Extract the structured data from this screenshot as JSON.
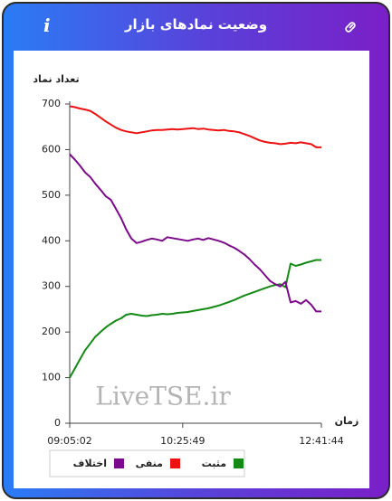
{
  "header": {
    "title": "وضعیت نمادهای بازار"
  },
  "chart_data": {
    "type": "line",
    "ylabel": "تعداد نماد",
    "xlabel": "زمان",
    "watermark": "LiveTSE.ir",
    "categories": [
      "09:05:02",
      null,
      null,
      null,
      null,
      null,
      null,
      null,
      null,
      null,
      null,
      null,
      null,
      null,
      null,
      null,
      null,
      null,
      null,
      null,
      null,
      null,
      "10:25:49",
      null,
      null,
      null,
      null,
      null,
      null,
      null,
      null,
      null,
      null,
      null,
      null,
      null,
      null,
      null,
      null,
      null,
      null,
      null,
      null,
      null,
      null,
      null,
      null,
      null,
      null,
      "12:41:44"
    ],
    "ylim": [
      0,
      700
    ],
    "yticks": [
      0,
      100,
      200,
      300,
      400,
      500,
      600,
      700
    ],
    "series": [
      {
        "name": "مثبت",
        "color": "#138a13",
        "values": [
          100,
          120,
          140,
          160,
          175,
          190,
          200,
          210,
          218,
          225,
          230,
          238,
          240,
          238,
          236,
          235,
          237,
          238,
          240,
          239,
          240,
          242,
          243,
          244,
          246,
          248,
          250,
          252,
          255,
          258,
          262,
          266,
          270,
          275,
          280,
          284,
          288,
          292,
          296,
          300,
          303,
          305,
          298,
          350,
          345,
          348,
          352,
          355,
          358,
          358
        ]
      },
      {
        "name": "منفی",
        "color": "#ee1111",
        "values": [
          695,
          693,
          690,
          688,
          685,
          678,
          670,
          662,
          655,
          648,
          643,
          640,
          638,
          636,
          638,
          640,
          642,
          643,
          643,
          644,
          645,
          644,
          645,
          646,
          647,
          645,
          646,
          644,
          643,
          642,
          643,
          641,
          640,
          638,
          634,
          630,
          625,
          620,
          617,
          615,
          614,
          612,
          613,
          615,
          614,
          616,
          614,
          612,
          605,
          605
        ]
      },
      {
        "name": "اختلاف",
        "color": "#7d0a8c",
        "values": [
          590,
          578,
          565,
          550,
          540,
          525,
          512,
          498,
          490,
          470,
          450,
          425,
          405,
          395,
          398,
          402,
          405,
          403,
          400,
          408,
          406,
          404,
          402,
          400,
          403,
          405,
          402,
          406,
          403,
          400,
          396,
          390,
          385,
          378,
          370,
          360,
          348,
          338,
          325,
          312,
          305,
          300,
          310,
          265,
          268,
          262,
          270,
          260,
          245,
          245
        ]
      }
    ]
  }
}
